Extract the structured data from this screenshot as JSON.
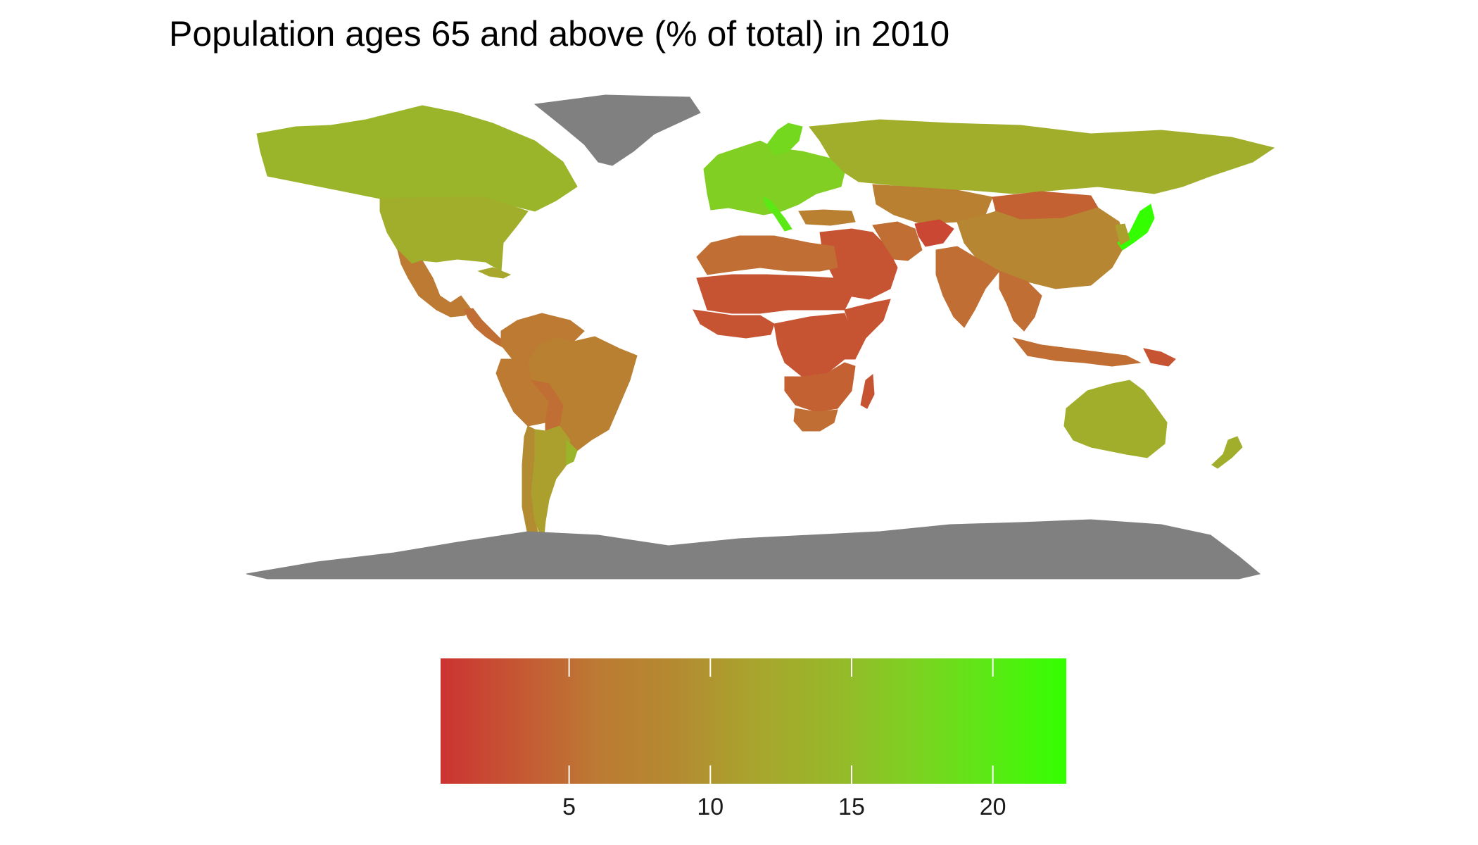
{
  "title": "Population ages 65 and above (% of total) in 2010",
  "colors": {
    "low": "#cc3333",
    "mid": "#b48832",
    "mid_high": "#a6b42c",
    "high": "#33ff00",
    "no_data": "#808080",
    "background": "#ffffff"
  },
  "legend": {
    "min": 0.45,
    "max": 22.6,
    "ticks": [
      {
        "value": 5,
        "label": "5"
      },
      {
        "value": 10,
        "label": "10"
      },
      {
        "value": 15,
        "label": "15"
      },
      {
        "value": 20,
        "label": "20"
      }
    ],
    "palette": [
      "#cc3333",
      "#c65733",
      "#bc7a33",
      "#b48a31",
      "#a9a42d",
      "#98b72a",
      "#7fd022",
      "#5ce815",
      "#33ff00"
    ]
  },
  "chart_data": {
    "type": "choropleth",
    "title": "Population ages 65 and above (% of total) in 2010",
    "regions": [
      {
        "name": "Canada",
        "value": 14
      },
      {
        "name": "United States",
        "value": 13
      },
      {
        "name": "Mexico",
        "value": 6
      },
      {
        "name": "Central America",
        "value": 5
      },
      {
        "name": "Cuba",
        "value": 12
      },
      {
        "name": "Colombia",
        "value": 6
      },
      {
        "name": "Venezuela",
        "value": 6
      },
      {
        "name": "Brazil",
        "value": 7
      },
      {
        "name": "Peru",
        "value": 6
      },
      {
        "name": "Bolivia",
        "value": 5
      },
      {
        "name": "Chile",
        "value": 9
      },
      {
        "name": "Argentina",
        "value": 11
      },
      {
        "name": "Uruguay",
        "value": 14
      },
      {
        "name": "Europe",
        "value": 17
      },
      {
        "name": "Italy",
        "value": 20
      },
      {
        "name": "Sweden",
        "value": 18
      },
      {
        "name": "Russia",
        "value": 13
      },
      {
        "name": "Kazakhstan",
        "value": 7
      },
      {
        "name": "Mongolia",
        "value": 4
      },
      {
        "name": "China",
        "value": 8
      },
      {
        "name": "Japan",
        "value": 23
      },
      {
        "name": "Korea",
        "value": 11
      },
      {
        "name": "India",
        "value": 5
      },
      {
        "name": "Southeast Asia",
        "value": 5
      },
      {
        "name": "Indonesia",
        "value": 5
      },
      {
        "name": "Papua New Guinea",
        "value": 3
      },
      {
        "name": "Middle East",
        "value": 3
      },
      {
        "name": "Iran",
        "value": 5
      },
      {
        "name": "Afghanistan",
        "value": 2
      },
      {
        "name": "Turkey",
        "value": 7
      },
      {
        "name": "North Africa",
        "value": 5
      },
      {
        "name": "Sahel",
        "value": 3
      },
      {
        "name": "West Africa",
        "value": 3
      },
      {
        "name": "Central Africa",
        "value": 3
      },
      {
        "name": "East Africa",
        "value": 3
      },
      {
        "name": "Southern Africa",
        "value": 4
      },
      {
        "name": "South Africa",
        "value": 5
      },
      {
        "name": "Madagascar",
        "value": 3
      },
      {
        "name": "Australia",
        "value": 13
      },
      {
        "name": "New Zealand",
        "value": 13
      },
      {
        "name": "Greenland",
        "value": null
      },
      {
        "name": "Antarctica",
        "value": null
      }
    ],
    "scale": {
      "min": 0.45,
      "max": 22.6,
      "low_color": "#cc3333",
      "high_color": "#33ff00"
    },
    "legend_position": "bottom"
  }
}
